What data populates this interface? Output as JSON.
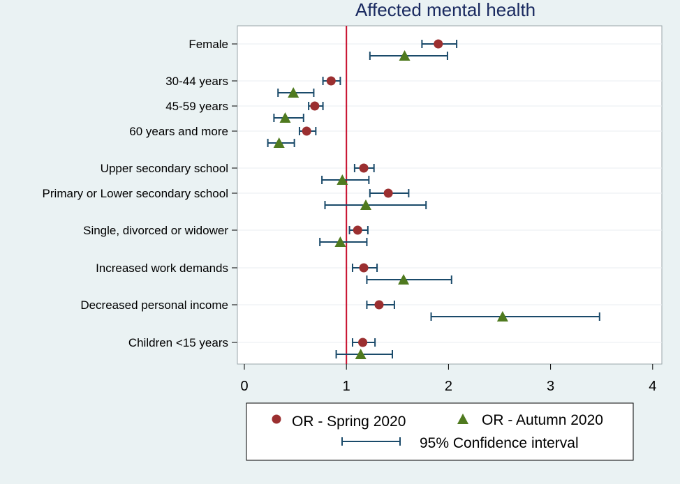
{
  "chart_data": {
    "type": "forest",
    "title": "Affected mental health",
    "xlabel": "",
    "ylabel": "",
    "xlim": [
      0,
      4.2
    ],
    "xticks": [
      0,
      1,
      2,
      3,
      4
    ],
    "reference_line": 1,
    "colors": {
      "spring": "#9b2f30",
      "autumn": "#4f7a1f",
      "ci": "#1a4a6a",
      "refline": "#c8102e",
      "plot_bg": "#ffffff",
      "outer_bg": "#eaf2f3"
    },
    "rows": [
      {
        "label": "Female",
        "spring": {
          "or": 1.9,
          "lo": 1.74,
          "hi": 2.08
        },
        "autumn": {
          "or": 1.57,
          "lo": 1.23,
          "hi": 1.99
        }
      },
      {
        "label": "30-44 years",
        "spring": {
          "or": 0.85,
          "lo": 0.77,
          "hi": 0.94
        },
        "autumn": {
          "or": 0.48,
          "lo": 0.33,
          "hi": 0.68
        }
      },
      {
        "label": "45-59 years",
        "spring": {
          "or": 0.69,
          "lo": 0.63,
          "hi": 0.77
        },
        "autumn": {
          "or": 0.4,
          "lo": 0.29,
          "hi": 0.58
        }
      },
      {
        "label": "60 years and more",
        "spring": {
          "or": 0.61,
          "lo": 0.54,
          "hi": 0.7
        },
        "autumn": {
          "or": 0.34,
          "lo": 0.23,
          "hi": 0.49
        }
      },
      {
        "label": "Upper secondary school",
        "spring": {
          "or": 1.17,
          "lo": 1.08,
          "hi": 1.27
        },
        "autumn": {
          "or": 0.96,
          "lo": 0.76,
          "hi": 1.22
        }
      },
      {
        "label": "Primary or Lower secondary school",
        "spring": {
          "or": 1.41,
          "lo": 1.23,
          "hi": 1.61
        },
        "autumn": {
          "or": 1.19,
          "lo": 0.79,
          "hi": 1.78
        }
      },
      {
        "label": "Single, divorced or widower",
        "spring": {
          "or": 1.11,
          "lo": 1.03,
          "hi": 1.21
        },
        "autumn": {
          "or": 0.94,
          "lo": 0.74,
          "hi": 1.2
        }
      },
      {
        "label": "Increased work demands",
        "spring": {
          "or": 1.17,
          "lo": 1.06,
          "hi": 1.3
        },
        "autumn": {
          "or": 1.56,
          "lo": 1.2,
          "hi": 2.03
        }
      },
      {
        "label": "Decreased personal income",
        "spring": {
          "or": 1.32,
          "lo": 1.2,
          "hi": 1.47
        },
        "autumn": {
          "or": 2.53,
          "lo": 1.83,
          "hi": 3.48
        }
      },
      {
        "label": "Children <15 years",
        "spring": {
          "or": 1.16,
          "lo": 1.06,
          "hi": 1.28
        },
        "autumn": {
          "or": 1.14,
          "lo": 0.9,
          "hi": 1.45
        }
      }
    ],
    "legend": {
      "position": "bottom",
      "spring_label": "OR - Spring 2020",
      "autumn_label": "OR - Autumn 2020",
      "ci_label": "95% Confidence interval"
    }
  }
}
